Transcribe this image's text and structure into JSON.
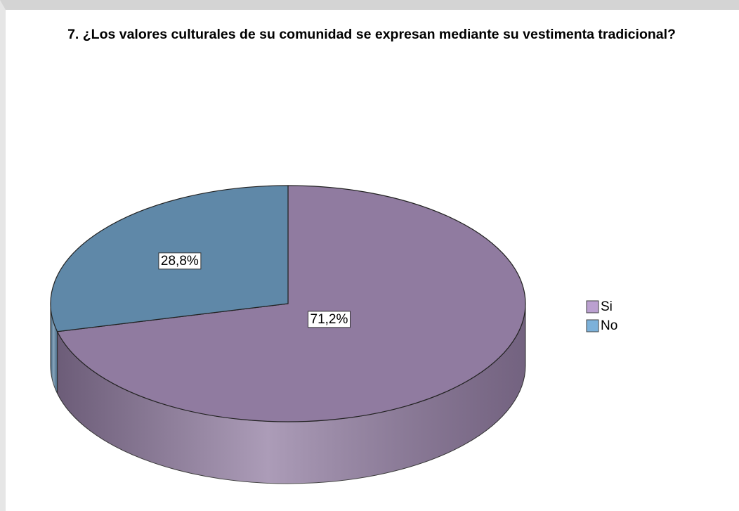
{
  "chart_data": {
    "type": "pie",
    "title": "7. ¿Los valores culturales de su comunidad se expresan mediante su vestimenta tradicional?",
    "categories": [
      "Si",
      "No"
    ],
    "values": [
      71.2,
      28.8
    ],
    "value_labels": [
      "71,2%",
      "28,8%"
    ],
    "colors": [
      "#907ba0",
      "#5f88a8"
    ],
    "legend": "right"
  }
}
